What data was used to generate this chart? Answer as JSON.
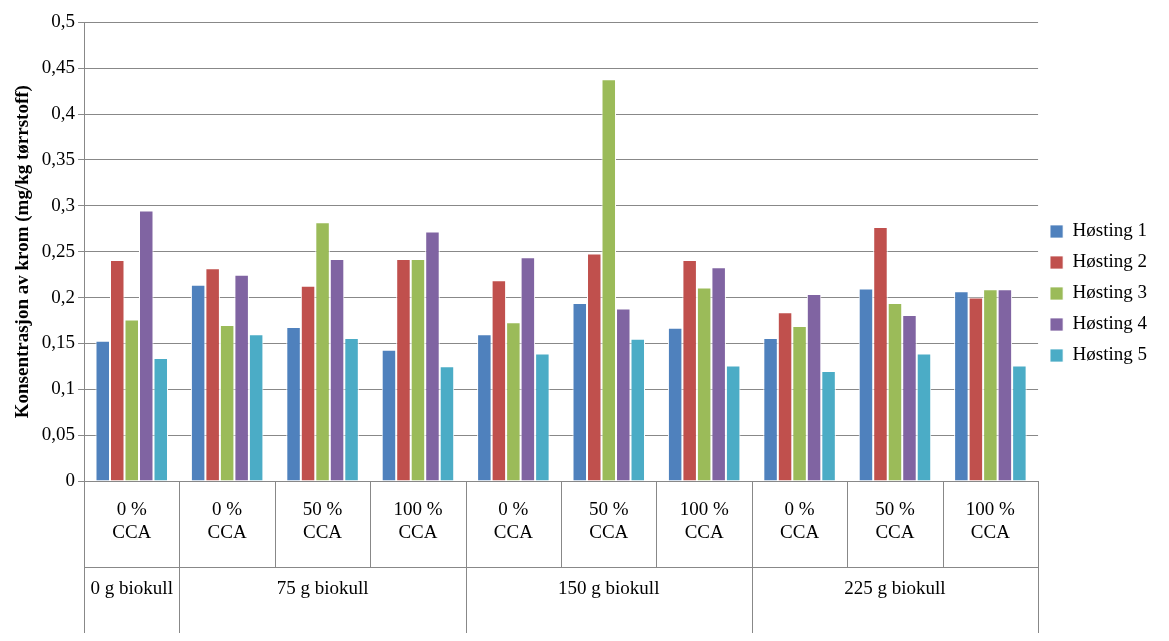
{
  "chart_data": {
    "type": "bar",
    "ylabel": "Konsentrasjon av krom (mg/kg tørrstoff)",
    "categories": [
      "0 % CCA",
      "0 % CCA",
      "50 % CCA",
      "100 % CCA",
      "0 % CCA",
      "50 % CCA",
      "100 % CCA",
      "0 % CCA",
      "50 % CCA",
      "100 % CCA"
    ],
    "series": [
      {
        "name": "Høsting 1",
        "color": "#4f81bd",
        "values": [
          0.153,
          0.214,
          0.168,
          0.143,
          0.16,
          0.194,
          0.167,
          0.156,
          0.21,
          0.207
        ]
      },
      {
        "name": "Høsting 2",
        "color": "#c0504d",
        "values": [
          0.241,
          0.232,
          0.213,
          0.242,
          0.219,
          0.248,
          0.241,
          0.184,
          0.277,
          0.2
        ]
      },
      {
        "name": "Høsting 3",
        "color": "#9bbb59",
        "values": [
          0.176,
          0.17,
          0.282,
          0.242,
          0.173,
          0.438,
          0.211,
          0.169,
          0.194,
          0.209
        ]
      },
      {
        "name": "Høsting 4",
        "color": "#8064a2",
        "values": [
          0.295,
          0.225,
          0.242,
          0.272,
          0.244,
          0.188,
          0.233,
          0.204,
          0.181,
          0.209
        ]
      },
      {
        "name": "Høsting 5",
        "color": "#4bacc6",
        "values": [
          0.134,
          0.16,
          0.156,
          0.125,
          0.139,
          0.155,
          0.126,
          0.12,
          0.139,
          0.126
        ]
      }
    ],
    "ylim": [
      0,
      0.5
    ],
    "yticks": [
      0,
      {
        "value": 0.05,
        "label": "0,05"
      },
      {
        "value": 0.1,
        "label": "0,1"
      },
      {
        "value": 0.15,
        "label": "0,15"
      },
      {
        "value": 0.2,
        "label": "0,2"
      },
      {
        "value": 0.25,
        "label": "0,25"
      },
      {
        "value": 0.3,
        "label": "0,3"
      },
      {
        "value": 0.35,
        "label": "0,35"
      },
      {
        "value": 0.4,
        "label": "0,4"
      },
      {
        "value": 0.45,
        "label": "0,45"
      },
      {
        "value": 0.5,
        "label": "0,5"
      }
    ],
    "grid": "y",
    "legend": "right",
    "annotations": [
      "0 g biokull",
      "75 g biokull",
      "150 g biokull",
      "225 g biokull"
    ]
  }
}
